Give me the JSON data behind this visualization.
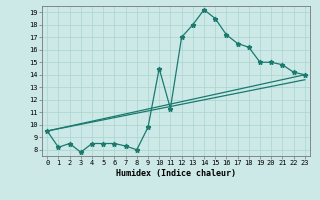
{
  "xlabel": "Humidex (Indice chaleur)",
  "ylabel": "",
  "bg_color": "#cce9e7",
  "line_color": "#1a7a6e",
  "xlim": [
    -0.5,
    23.5
  ],
  "ylim": [
    7.5,
    19.5
  ],
  "xticks": [
    0,
    1,
    2,
    3,
    4,
    5,
    6,
    7,
    8,
    9,
    10,
    11,
    12,
    13,
    14,
    15,
    16,
    17,
    18,
    19,
    20,
    21,
    22,
    23
  ],
  "yticks": [
    8,
    9,
    10,
    11,
    12,
    13,
    14,
    15,
    16,
    17,
    18,
    19
  ],
  "series1_x": [
    0,
    1,
    2,
    3,
    4,
    5,
    6,
    7,
    8,
    9,
    10,
    11,
    12,
    13,
    14,
    15,
    16,
    17,
    18,
    19,
    20,
    21,
    22,
    23
  ],
  "series1_y": [
    9.5,
    8.2,
    8.5,
    7.8,
    8.5,
    8.5,
    8.5,
    8.3,
    8.0,
    9.8,
    14.5,
    11.3,
    17.0,
    18.0,
    19.2,
    18.5,
    17.2,
    16.5,
    16.2,
    15.0,
    15.0,
    14.8,
    14.2,
    14.0
  ],
  "series2_x": [
    0,
    23
  ],
  "series2_y": [
    9.5,
    14.0
  ],
  "series3_x": [
    0,
    23
  ],
  "series3_y": [
    9.5,
    13.6
  ],
  "xlabel_fontsize": 6.0,
  "tick_fontsize": 5.0
}
